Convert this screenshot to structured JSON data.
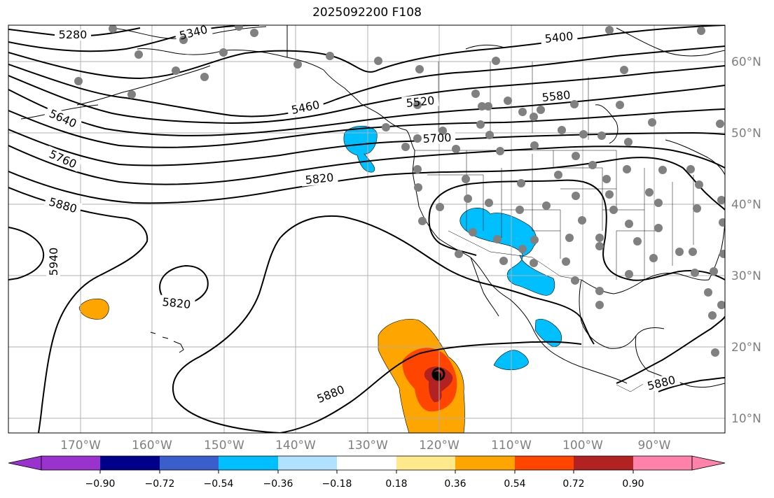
{
  "title": "2025092200 F108",
  "longitude_labels": [
    "170°W",
    "160°W",
    "150°W",
    "140°W",
    "130°W",
    "120°W",
    "110°W",
    "100°W",
    "90°W"
  ],
  "latitude_labels": [
    "60°N",
    "50°N",
    "40°N",
    "30°N",
    "20°N",
    "10°N"
  ],
  "contour_labels": [
    "5280",
    "5340",
    "5400",
    "5460",
    "5520",
    "5580",
    "5640",
    "5700",
    "5760",
    "5820",
    "5880",
    "5940",
    "5820",
    "5880",
    "5880"
  ],
  "colorbar": {
    "tick_labels": [
      "−0.90",
      "−0.72",
      "−0.54",
      "−0.36",
      "−0.18",
      "0.18",
      "0.36",
      "0.54",
      "0.72",
      "0.90"
    ],
    "colors": [
      "#9a32cd",
      "#00008b",
      "#3a5fcd",
      "#00bfff",
      "#b0e2ff",
      "#ffffff",
      "#ffe98b",
      "#ffa500",
      "#ff4500",
      "#b22222",
      "#ff82ab"
    ]
  },
  "shading_colors": {
    "negative_light": "#00bfff",
    "positive_orange": "#ffa500",
    "positive_red": "#ff4500",
    "positive_dark": "#b22222"
  },
  "station_color": "#808080"
}
